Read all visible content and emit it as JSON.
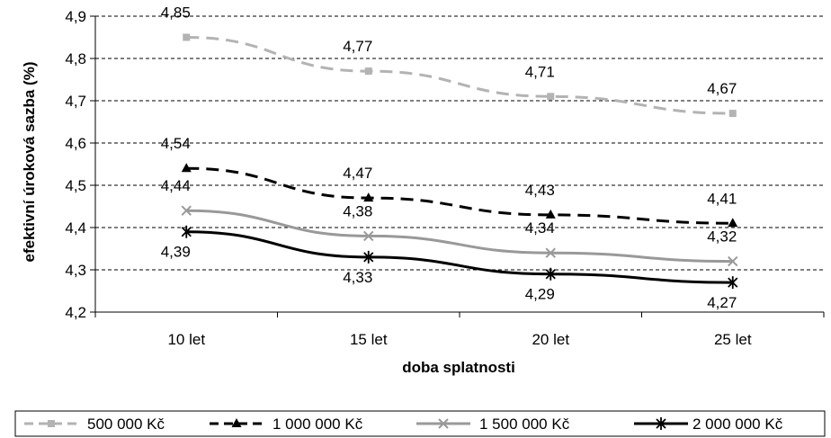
{
  "chart_data": {
    "type": "line",
    "title": "",
    "xlabel": "doba splatnosti",
    "ylabel": "efektivní úroková sazba (%)",
    "categories": [
      "10 let",
      "15 let",
      "20 let",
      "25 let"
    ],
    "ylim": [
      4.2,
      4.9
    ],
    "yticks": [
      "4,2",
      "4,3",
      "4,4",
      "4,5",
      "4,6",
      "4,7",
      "4,8",
      "4,9"
    ],
    "grid": "horizontal dashed",
    "legend_position": "bottom",
    "series": [
      {
        "name": "500 000 Kč",
        "values": [
          4.85,
          4.77,
          4.71,
          4.67
        ],
        "labels": [
          "4,85",
          "4,77",
          "4,71",
          "4,67"
        ],
        "color": "#b3b3b3",
        "dash": "dashed",
        "marker": "square"
      },
      {
        "name": "1 000 000 Kč",
        "values": [
          4.54,
          4.47,
          4.43,
          4.41
        ],
        "labels": [
          "4,54",
          "4,47",
          "4,43",
          "4,41"
        ],
        "color": "#000000",
        "dash": "dashed",
        "marker": "triangle"
      },
      {
        "name": "1 500 000 Kč",
        "values": [
          4.44,
          4.38,
          4.34,
          4.32
        ],
        "labels": [
          "4,44",
          "4,38",
          "4,34",
          "4,32"
        ],
        "color": "#999999",
        "dash": "solid",
        "marker": "x"
      },
      {
        "name": "2 000 000 Kč",
        "values": [
          4.39,
          4.33,
          4.29,
          4.27
        ],
        "labels": [
          "4,39",
          "4,33",
          "4,29",
          "4,27"
        ],
        "color": "#000000",
        "dash": "solid",
        "marker": "star"
      }
    ]
  }
}
